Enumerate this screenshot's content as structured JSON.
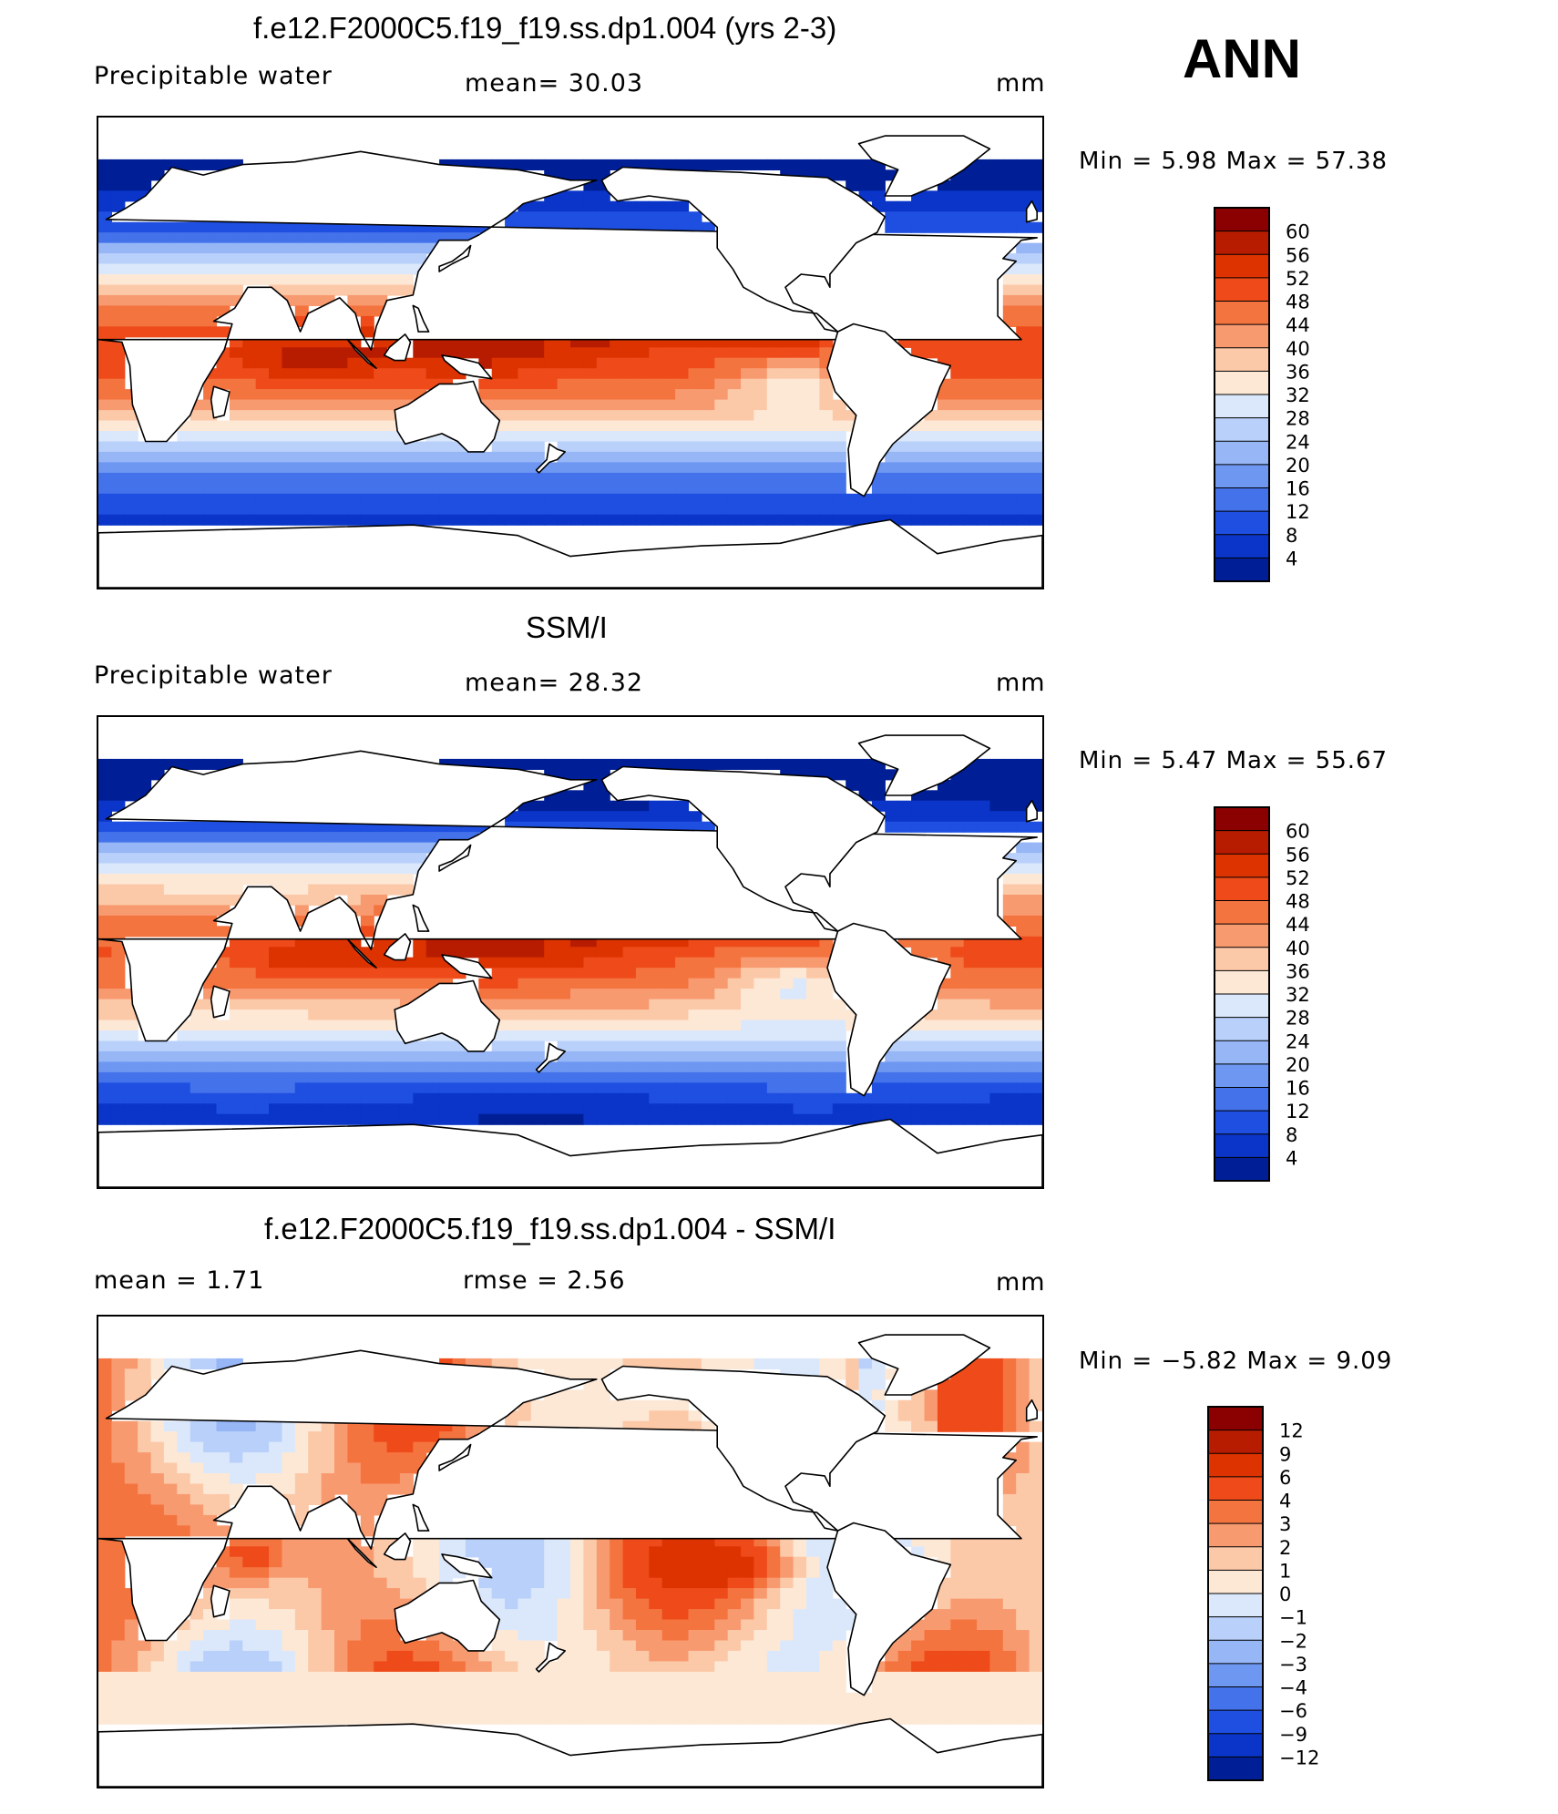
{
  "season": "ANN",
  "panels": [
    {
      "title": "f.e12.F2000C5.f19_f19.ss.dp1.004 (yrs 2-3)",
      "left_label": "Precipitable  water",
      "center_label": "mean=   30.03",
      "units": "mm",
      "minmax": "Min  =     5.98  Max  =    57.38"
    },
    {
      "title": "SSM/I",
      "left_label": "Precipitable  water",
      "center_label": "mean=   28.32",
      "units": "mm",
      "minmax": "Min  =     5.47  Max  =    55.67"
    },
    {
      "title": "f.e12.F2000C5.f19_f19.ss.dp1.004 - SSM/I",
      "left_label": "mean  =      1.71",
      "center_label": "rmse  =      2.56",
      "units": "mm",
      "minmax": "Min  =   −5.82  Max  =     9.09"
    }
  ],
  "chart_data": [
    {
      "type": "heatmap",
      "title": "f.e12.F2000C5.f19_f19.ss.dp1.004 (yrs 2-3)",
      "variable": "Precipitable water",
      "units": "mm",
      "mean": 30.03,
      "min": 5.98,
      "max": 57.38,
      "colorbar_levels": [
        "60",
        "56",
        "52",
        "48",
        "44",
        "40",
        "36",
        "32",
        "28",
        "24",
        "20",
        "16",
        "12",
        "8",
        "4"
      ],
      "colors": [
        "#8b0000",
        "#b81c00",
        "#dd3300",
        "#ee4a1a",
        "#f47440",
        "#f89a70",
        "#fcc9a8",
        "#fde8d6",
        "#dbe8fb",
        "#b9d0fa",
        "#96b6f6",
        "#6e97f2",
        "#4472ea",
        "#1e4fe0",
        "#0a35c8",
        "#001f96"
      ],
      "field": "model"
    },
    {
      "type": "heatmap",
      "title": "SSM/I",
      "variable": "Precipitable water",
      "units": "mm",
      "mean": 28.32,
      "min": 5.47,
      "max": 55.67,
      "colorbar_levels": [
        "60",
        "56",
        "52",
        "48",
        "44",
        "40",
        "36",
        "32",
        "28",
        "24",
        "20",
        "16",
        "12",
        "8",
        "4"
      ],
      "colors": [
        "#8b0000",
        "#b81c00",
        "#dd3300",
        "#ee4a1a",
        "#f47440",
        "#f89a70",
        "#fcc9a8",
        "#fde8d6",
        "#dbe8fb",
        "#b9d0fa",
        "#96b6f6",
        "#6e97f2",
        "#4472ea",
        "#1e4fe0",
        "#0a35c8",
        "#001f96"
      ],
      "field": "obs"
    },
    {
      "type": "heatmap",
      "title": "f.e12.F2000C5.f19_f19.ss.dp1.004 - SSM/I",
      "units": "mm",
      "mean": 1.71,
      "rmse": 2.56,
      "min": -5.82,
      "max": 9.09,
      "colorbar_levels": [
        "12",
        "9",
        "6",
        "4",
        "3",
        "2",
        "1",
        "0",
        "−1",
        "−2",
        "−3",
        "−4",
        "−6",
        "−9",
        "−12"
      ],
      "colors": [
        "#8b0000",
        "#b81c00",
        "#dd3300",
        "#ee4a1a",
        "#f47440",
        "#f89a70",
        "#fcc9a8",
        "#fde8d6",
        "#dbe8fb",
        "#b9d0fa",
        "#96b6f6",
        "#6e97f2",
        "#4472ea",
        "#1e4fe0",
        "#0a35c8",
        "#001f96"
      ],
      "field": "diff"
    }
  ]
}
